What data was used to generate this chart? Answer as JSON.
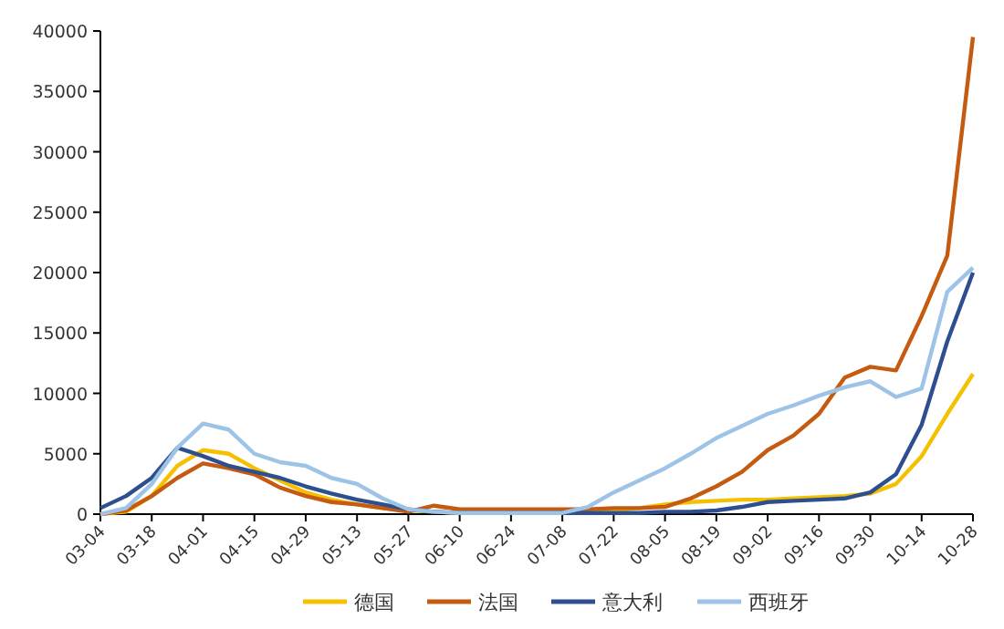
{
  "chart_data": {
    "type": "line",
    "legend": "bottom",
    "x": [
      "--03-04",
      "--03-11",
      "--03-18",
      "--03-25",
      "--04-01",
      "--04-08",
      "--04-15",
      "--04-22",
      "--04-29",
      "--05-06",
      "--05-13",
      "--05-20",
      "--05-27",
      "--06-03",
      "--06-10",
      "--06-17",
      "--06-24",
      "--07-01",
      "--07-08",
      "--07-15",
      "--07-22",
      "--07-29",
      "--08-05",
      "--08-12",
      "--08-19",
      "--08-26",
      "--09-02",
      "--09-09",
      "--09-16",
      "--09-23",
      "--09-30",
      "--10-07",
      "--10-14",
      "--10-21",
      "--10-28"
    ],
    "xlim": [
      "--03-04",
      "--10-28"
    ],
    "xticks": [
      {
        "value": "--03-04",
        "label": "03-04"
      },
      {
        "value": "--03-18",
        "label": "03-18"
      },
      {
        "value": "--04-01",
        "label": "04-01"
      },
      {
        "value": "--04-15",
        "label": "04-15"
      },
      {
        "value": "--04-29",
        "label": "04-29"
      },
      {
        "value": "--05-13",
        "label": "05-13"
      },
      {
        "value": "--05-27",
        "label": "05-27"
      },
      {
        "value": "--06-10",
        "label": "06-10"
      },
      {
        "value": "--06-24",
        "label": "06-24"
      },
      {
        "value": "--07-08",
        "label": "07-08"
      },
      {
        "value": "--07-22",
        "label": "07-22"
      },
      {
        "value": "--08-05",
        "label": "08-05"
      },
      {
        "value": "--08-19",
        "label": "08-19"
      },
      {
        "value": "--09-02",
        "label": "09-02"
      },
      {
        "value": "--09-16",
        "label": "09-16"
      },
      {
        "value": "--09-30",
        "label": "09-30"
      },
      {
        "value": "--10-14",
        "label": "10-14"
      },
      {
        "value": "--10-28",
        "label": "10-28"
      }
    ],
    "ylim": [
      0,
      40000
    ],
    "yticks": [
      0,
      5000,
      10000,
      15000,
      20000,
      25000,
      30000,
      35000,
      40000
    ],
    "series": [
      {
        "name": "德国",
        "color": "#f5c000",
        "values": [
          0,
          200,
          1500,
          4000,
          5300,
          5000,
          3800,
          2800,
          1800,
          1200,
          800,
          500,
          300,
          200,
          100,
          100,
          100,
          100,
          100,
          200,
          300,
          500,
          800,
          1000,
          1100,
          1200,
          1200,
          1300,
          1400,
          1500,
          1700,
          2500,
          4800,
          8300,
          11600
        ]
      },
      {
        "name": "法国",
        "color": "#c55a11",
        "values": [
          0,
          300,
          1500,
          3000,
          4200,
          3800,
          3300,
          2200,
          1500,
          1000,
          800,
          500,
          200,
          700,
          400,
          400,
          400,
          400,
          400,
          400,
          500,
          500,
          600,
          1300,
          2300,
          3500,
          5300,
          6500,
          8300,
          11300,
          12200,
          11900,
          16400,
          21400,
          39500
        ]
      },
      {
        "name": "意大利",
        "color": "#2e4f8f",
        "values": [
          500,
          1500,
          3000,
          5500,
          4800,
          4000,
          3500,
          3000,
          2300,
          1700,
          1200,
          800,
          400,
          200,
          100,
          100,
          100,
          100,
          100,
          100,
          100,
          100,
          200,
          200,
          300,
          600,
          1000,
          1100,
          1200,
          1300,
          1800,
          3300,
          7400,
          14300,
          20000
        ]
      },
      {
        "name": "西班牙",
        "color": "#9dc3e6",
        "values": [
          0,
          500,
          2500,
          5500,
          7500,
          7000,
          5000,
          4300,
          4000,
          3000,
          2500,
          1300,
          400,
          200,
          100,
          100,
          100,
          100,
          100,
          600,
          1800,
          2800,
          3800,
          5000,
          6300,
          7300,
          8300,
          9000,
          9800,
          10500,
          11000,
          9700,
          10400,
          18400,
          20400
        ]
      }
    ]
  }
}
